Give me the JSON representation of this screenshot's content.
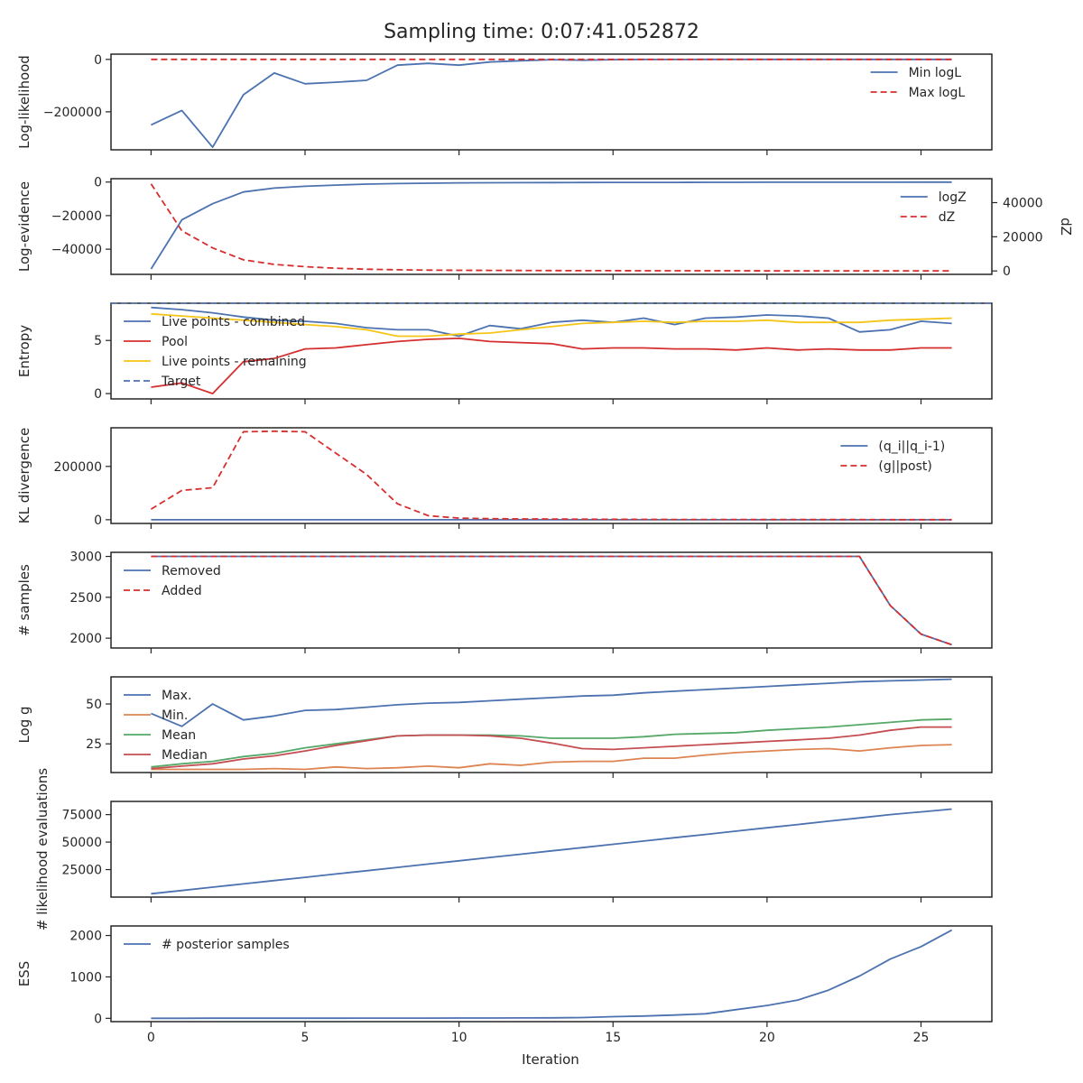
{
  "figure": {
    "title": "Sampling time: 0:07:41.052872",
    "xlabel": "Iteration",
    "x_ticks": [
      "0",
      "5",
      "10",
      "15",
      "20",
      "25"
    ]
  },
  "colors": {
    "blue": "#4c72b0",
    "red": "#d62f2f",
    "yellow": "#f5c518",
    "orange": "#dd8452",
    "green": "#55a868",
    "mred": "#c44e52",
    "axis": "#262626"
  },
  "chart_data": [
    {
      "type": "line",
      "ylabel": "Log-likelihood",
      "ylim": [
        -345000,
        20000
      ],
      "yticks": [
        0,
        -200000
      ],
      "ytick_labels": [
        "0",
        "−200000"
      ],
      "legend": "upper right",
      "series": [
        {
          "name": "Min logL",
          "color": "blue",
          "dash": false,
          "values": [
            -250000,
            -195000,
            -335000,
            -135000,
            -52000,
            -93000,
            -87000,
            -80000,
            -22000,
            -15000,
            -22000,
            -10000,
            -5000,
            -1000,
            -3000,
            -1000,
            -300,
            -200,
            -100,
            -50,
            -30,
            -20,
            -10,
            -10,
            -5,
            -5,
            -3
          ]
        },
        {
          "name": "Max logL",
          "color": "red",
          "dash": true,
          "values": [
            0,
            0,
            0,
            0,
            0,
            0,
            0,
            0,
            0,
            0,
            0,
            0,
            0,
            0,
            0,
            0,
            0,
            0,
            0,
            0,
            0,
            0,
            0,
            0,
            0,
            0,
            0
          ]
        }
      ]
    },
    {
      "type": "line",
      "ylabel": "Log-evidence",
      "ylim": [
        -55000,
        2000
      ],
      "yticks": [
        0,
        -20000,
        -40000
      ],
      "ytick_labels": [
        "0",
        "−20000",
        "−40000"
      ],
      "y2label": "dZ",
      "y2lim": [
        -2000,
        54000
      ],
      "y2ticks": [
        0,
        20000,
        40000
      ],
      "y2tick_labels": [
        "0",
        "20000",
        "40000"
      ],
      "legend": "upper right",
      "series": [
        {
          "name": "logZ",
          "color": "blue",
          "dash": false,
          "axis": "left",
          "values": [
            -51800,
            -22500,
            -12900,
            -5900,
            -3600,
            -2500,
            -1800,
            -1200,
            -900,
            -700,
            -500,
            -400,
            -350,
            -300,
            -260,
            -230,
            -200,
            -180,
            -160,
            -140,
            -120,
            -110,
            -100,
            -90,
            -80,
            -70,
            -60
          ]
        },
        {
          "name": "dZ",
          "color": "red",
          "dash": true,
          "axis": "right",
          "values": [
            51000,
            23500,
            13500,
            6500,
            3800,
            2500,
            1600,
            1000,
            700,
            500,
            380,
            300,
            250,
            200,
            170,
            150,
            130,
            110,
            100,
            90,
            80,
            70,
            60,
            55,
            50,
            45,
            40
          ]
        }
      ]
    },
    {
      "type": "line",
      "ylabel": "Entropy",
      "ylim": [
        -0.5,
        8.5
      ],
      "yticks": [
        0,
        5
      ],
      "ytick_labels": [
        "0",
        "5"
      ],
      "legend": "upper left",
      "series": [
        {
          "name": "Live points - combined",
          "color": "blue",
          "dash": false,
          "values": [
            8.1,
            7.9,
            7.6,
            7.2,
            6.9,
            6.8,
            6.6,
            6.2,
            6.0,
            6.0,
            5.4,
            6.4,
            6.1,
            6.7,
            6.9,
            6.7,
            7.1,
            6.5,
            7.1,
            7.2,
            7.4,
            7.3,
            7.1,
            5.8,
            6.0,
            6.8,
            6.6
          ]
        },
        {
          "name": "Pool",
          "color": "red",
          "dash": false,
          "values": [
            0.6,
            1.0,
            0.0,
            3.0,
            3.3,
            4.2,
            4.3,
            4.6,
            4.9,
            5.1,
            5.2,
            4.9,
            4.8,
            4.7,
            4.2,
            4.3,
            4.3,
            4.2,
            4.2,
            4.1,
            4.3,
            4.1,
            4.2,
            4.1,
            4.1,
            4.3,
            4.3
          ]
        },
        {
          "name": "Live points - remaining",
          "color": "yellow",
          "dash": false,
          "values": [
            7.5,
            7.3,
            7.1,
            6.9,
            6.7,
            6.5,
            6.3,
            6.0,
            5.4,
            5.4,
            5.6,
            5.7,
            6.0,
            6.3,
            6.6,
            6.7,
            6.8,
            6.7,
            6.8,
            6.8,
            6.9,
            6.7,
            6.7,
            6.7,
            6.9,
            7.0,
            7.1
          ]
        },
        {
          "name": "Target",
          "color": "blue",
          "dash": true,
          "hline": 8.5
        }
      ]
    },
    {
      "type": "line",
      "ylabel": "KL divergence",
      "ylim": [
        -14000,
        345000
      ],
      "yticks": [
        0,
        200000
      ],
      "ytick_labels": [
        "0",
        "200000"
      ],
      "legend": "upper right",
      "series": [
        {
          "name": "(q_i||q_i-1)",
          "color": "blue",
          "dash": false,
          "values": [
            0,
            0,
            0,
            0,
            0,
            0,
            0,
            0,
            0,
            0,
            0,
            0,
            0,
            0,
            0,
            0,
            0,
            0,
            0,
            0,
            0,
            0,
            0,
            0,
            0,
            0,
            0
          ]
        },
        {
          "name": "(g||post)",
          "color": "red",
          "dash": true,
          "values": [
            40000,
            110000,
            120000,
            330000,
            332000,
            330000,
            250000,
            170000,
            60000,
            15000,
            6000,
            4000,
            3000,
            2500,
            2000,
            1500,
            1200,
            1000,
            900,
            800,
            700,
            600,
            500,
            400,
            300,
            200,
            100
          ]
        }
      ]
    },
    {
      "type": "line",
      "ylabel": "# samples",
      "ylim": [
        1880,
        3050
      ],
      "yticks": [
        2000,
        2500,
        3000
      ],
      "ytick_labels": [
        "2000",
        "2500",
        "3000"
      ],
      "legend": "upper left",
      "series": [
        {
          "name": "Removed",
          "color": "blue",
          "dash": false,
          "values": [
            3000,
            3000,
            3000,
            3000,
            3000,
            3000,
            3000,
            3000,
            3000,
            3000,
            3000,
            3000,
            3000,
            3000,
            3000,
            3000,
            3000,
            3000,
            3000,
            3000,
            3000,
            3000,
            3000,
            3000,
            2400,
            2050,
            1920
          ]
        },
        {
          "name": "Added",
          "color": "red",
          "dash": true,
          "values": [
            3000,
            3000,
            3000,
            3000,
            3000,
            3000,
            3000,
            3000,
            3000,
            3000,
            3000,
            3000,
            3000,
            3000,
            3000,
            3000,
            3000,
            3000,
            3000,
            3000,
            3000,
            3000,
            3000,
            3000,
            2400,
            2050,
            1920
          ]
        }
      ]
    },
    {
      "type": "line",
      "ylabel": "Log g",
      "ylim": [
        7,
        67
      ],
      "yticks": [
        25,
        50
      ],
      "ytick_labels": [
        "25",
        "50"
      ],
      "legend": "upper left",
      "series": [
        {
          "name": "Max.",
          "color": "blue",
          "dash": false,
          "values": [
            44,
            36,
            50,
            40,
            42.5,
            46,
            46.5,
            48,
            49.5,
            50.5,
            51,
            52,
            53,
            54,
            55,
            55.5,
            57,
            58,
            59,
            60,
            61,
            62,
            63,
            64,
            64.5,
            65,
            65.5
          ]
        },
        {
          "name": "Min.",
          "color": "orange",
          "dash": false,
          "values": [
            9,
            9,
            9,
            9,
            9.5,
            9,
            10.5,
            9.5,
            10,
            11,
            10,
            12.5,
            11.5,
            13.5,
            14,
            14,
            16,
            16,
            18,
            19.5,
            20.5,
            21.5,
            22,
            20.5,
            22.5,
            24,
            24.5
          ]
        },
        {
          "name": "Mean",
          "color": "green",
          "dash": false,
          "values": [
            10.5,
            12.5,
            14,
            17,
            19,
            22.5,
            25,
            27.5,
            30,
            30.5,
            30.5,
            30.5,
            30,
            28.5,
            28.5,
            28.5,
            29.5,
            31,
            31.5,
            32,
            33.5,
            34.5,
            35.5,
            37,
            38.5,
            40,
            40.5
          ]
        },
        {
          "name": "Median",
          "color": "mred",
          "dash": false,
          "values": [
            9.5,
            11,
            12.5,
            15.5,
            17.5,
            20.5,
            24,
            27,
            30,
            30.5,
            30.5,
            30,
            28.5,
            25.5,
            22,
            21.5,
            22.5,
            23.5,
            24.5,
            25.5,
            26.5,
            27.5,
            28.5,
            30.5,
            33.5,
            35.5,
            35.5
          ]
        }
      ]
    },
    {
      "type": "line",
      "ylabel": "# likelihood evaluations",
      "ylim": [
        0,
        87000
      ],
      "yticks": [
        25000,
        50000,
        75000
      ],
      "ytick_labels": [
        "25000",
        "50000",
        "75000"
      ],
      "legend": "none",
      "series": [
        {
          "name": "",
          "color": "blue",
          "dash": false,
          "values": [
            3000,
            6000,
            9000,
            12000,
            15000,
            18000,
            21000,
            24000,
            27000,
            30000,
            33000,
            36000,
            39000,
            42000,
            45000,
            48000,
            51000,
            54000,
            57000,
            60000,
            63000,
            66000,
            69000,
            72000,
            75000,
            77500,
            80000
          ]
        }
      ]
    },
    {
      "type": "line",
      "ylabel": "ESS",
      "ylim": [
        -80,
        2230
      ],
      "yticks": [
        0,
        1000,
        2000
      ],
      "ytick_labels": [
        "0",
        "1000",
        "2000"
      ],
      "legend": "upper left",
      "series": [
        {
          "name": "# posterior samples",
          "color": "blue",
          "dash": false,
          "values": [
            1,
            1,
            2,
            2,
            3,
            3,
            3,
            4,
            5,
            6,
            7,
            8,
            9,
            12,
            18,
            40,
            55,
            80,
            110,
            210,
            310,
            440,
            680,
            1020,
            1430,
            1730,
            2130
          ]
        }
      ]
    }
  ]
}
